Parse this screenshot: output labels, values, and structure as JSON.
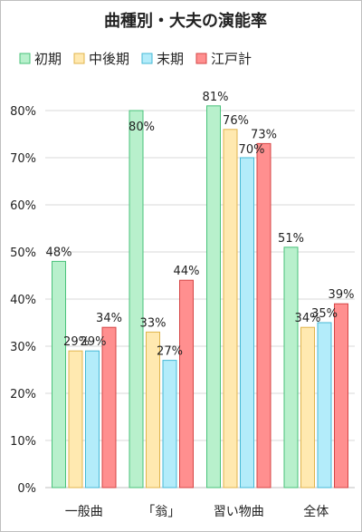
{
  "chart_data": {
    "type": "bar",
    "title": "曲種別・大夫の演能率",
    "categories": [
      "一般曲",
      "「翁」",
      "習い物曲",
      "全体"
    ],
    "series": [
      {
        "name": "初期",
        "values": [
          48,
          80,
          81,
          51
        ],
        "labels": [
          "48%",
          "80%",
          "81%",
          "51%"
        ],
        "color": "#b8f0cc",
        "stroke": "#49c27a"
      },
      {
        "name": "中後期",
        "values": [
          29,
          33,
          76,
          34
        ],
        "labels": [
          "29%",
          "33%",
          "76%",
          "34%"
        ],
        "color": "#ffe9b0",
        "stroke": "#e0b44c"
      },
      {
        "name": "末期",
        "values": [
          29,
          27,
          70,
          35
        ],
        "labels": [
          "29%",
          "27%",
          "70%",
          "35%"
        ],
        "color": "#b3ecfa",
        "stroke": "#46b9d6"
      },
      {
        "name": "江戸計",
        "values": [
          34,
          44,
          73,
          39
        ],
        "labels": [
          "34%",
          "44%",
          "73%",
          "39%"
        ],
        "color": "#ff8f8f",
        "stroke": "#d64545"
      }
    ],
    "ylim": [
      0,
      80
    ],
    "yticks": [
      "0%",
      "10%",
      "20%",
      "30%",
      "40%",
      "50%",
      "60%",
      "70%",
      "80%"
    ],
    "legend_position": "top",
    "grid": true
  }
}
